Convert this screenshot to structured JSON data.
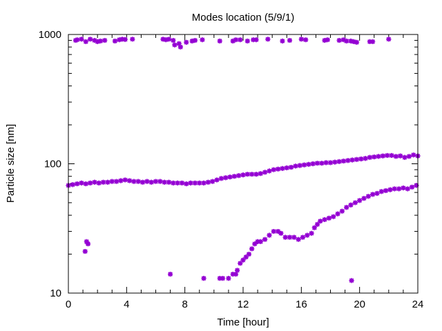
{
  "chart_data": {
    "type": "scatter",
    "title": "Modes location (5/9/1)",
    "xlabel": "Time [hour]",
    "ylabel": "Particle size [nm]",
    "xlim": [
      0,
      24
    ],
    "ylim": [
      10,
      1000
    ],
    "yscale": "log",
    "grid": false,
    "legend": "none",
    "marker_color": "#9400d3",
    "x_ticks": [
      0,
      4,
      8,
      12,
      16,
      20,
      24
    ],
    "x_tick_labels": [
      "0",
      "4",
      "8",
      "12",
      "16",
      "20",
      "24"
    ],
    "y_ticks": [
      10,
      100,
      1000
    ],
    "y_tick_labels": [
      "10",
      "100",
      "1000"
    ],
    "series": [
      {
        "values": [
          [
            0.5,
            900
          ],
          [
            0.6,
            910
          ],
          [
            0.9,
            920
          ],
          [
            1.2,
            880
          ],
          [
            1.5,
            920
          ],
          [
            1.8,
            900
          ],
          [
            2.0,
            880
          ],
          [
            2.2,
            890
          ],
          [
            2.5,
            900
          ],
          [
            3.2,
            890
          ],
          [
            3.5,
            910
          ],
          [
            3.7,
            920
          ],
          [
            3.9,
            915
          ],
          [
            4.4,
            920
          ],
          [
            6.5,
            920
          ],
          [
            6.7,
            910
          ],
          [
            6.9,
            920
          ],
          [
            7.2,
            900
          ],
          [
            7.3,
            830
          ],
          [
            7.6,
            850
          ],
          [
            7.7,
            800
          ],
          [
            8.1,
            870
          ],
          [
            8.5,
            890
          ],
          [
            8.7,
            900
          ],
          [
            9.2,
            910
          ],
          [
            10.4,
            890
          ],
          [
            11.3,
            890
          ],
          [
            11.5,
            910
          ],
          [
            11.8,
            910
          ],
          [
            12.3,
            890
          ],
          [
            12.7,
            910
          ],
          [
            12.9,
            910
          ],
          [
            13.7,
            920
          ],
          [
            14.7,
            890
          ],
          [
            15.2,
            900
          ],
          [
            16.0,
            920
          ],
          [
            16.3,
            910
          ],
          [
            17.6,
            900
          ],
          [
            17.8,
            910
          ],
          [
            18.6,
            900
          ],
          [
            18.9,
            910
          ],
          [
            19.1,
            890
          ],
          [
            19.4,
            890
          ],
          [
            19.6,
            880
          ],
          [
            19.8,
            870
          ],
          [
            20.7,
            880
          ],
          [
            20.9,
            880
          ],
          [
            22.0,
            920
          ]
        ]
      },
      {
        "values": [
          [
            0.0,
            68
          ],
          [
            0.3,
            69
          ],
          [
            0.6,
            70
          ],
          [
            0.9,
            71
          ],
          [
            1.2,
            70
          ],
          [
            1.5,
            71
          ],
          [
            1.8,
            72
          ],
          [
            2.1,
            71
          ],
          [
            2.4,
            72
          ],
          [
            2.7,
            72
          ],
          [
            3.0,
            73
          ],
          [
            3.3,
            73
          ],
          [
            3.6,
            74
          ],
          [
            3.9,
            75
          ],
          [
            4.2,
            74
          ],
          [
            4.5,
            73
          ],
          [
            4.8,
            73
          ],
          [
            5.1,
            72
          ],
          [
            5.4,
            73
          ],
          [
            5.7,
            72
          ],
          [
            6.0,
            73
          ],
          [
            6.3,
            73
          ],
          [
            6.6,
            72
          ],
          [
            6.9,
            72
          ],
          [
            7.2,
            71
          ],
          [
            7.5,
            71
          ],
          [
            7.8,
            71
          ],
          [
            8.1,
            70
          ],
          [
            8.4,
            71
          ],
          [
            8.7,
            71
          ],
          [
            9.0,
            71
          ],
          [
            9.3,
            71
          ],
          [
            9.6,
            72
          ],
          [
            9.9,
            73
          ],
          [
            10.2,
            75
          ],
          [
            10.5,
            77
          ],
          [
            10.8,
            78
          ],
          [
            11.1,
            79
          ],
          [
            11.4,
            80
          ],
          [
            11.7,
            81
          ],
          [
            12.0,
            82
          ],
          [
            12.3,
            83
          ],
          [
            12.6,
            83
          ],
          [
            12.9,
            83
          ],
          [
            13.2,
            84
          ],
          [
            13.5,
            86
          ],
          [
            13.8,
            88
          ],
          [
            14.1,
            90
          ],
          [
            14.4,
            91
          ],
          [
            14.7,
            92
          ],
          [
            15.0,
            93
          ],
          [
            15.3,
            94
          ],
          [
            15.6,
            96
          ],
          [
            15.9,
            97
          ],
          [
            16.2,
            98
          ],
          [
            16.5,
            99
          ],
          [
            16.8,
            100
          ],
          [
            17.1,
            101
          ],
          [
            17.4,
            101
          ],
          [
            17.7,
            102
          ],
          [
            18.0,
            102
          ],
          [
            18.3,
            103
          ],
          [
            18.6,
            104
          ],
          [
            18.9,
            105
          ],
          [
            19.2,
            106
          ],
          [
            19.5,
            107
          ],
          [
            19.8,
            108
          ],
          [
            20.1,
            109
          ],
          [
            20.4,
            110
          ],
          [
            20.7,
            112
          ],
          [
            21.0,
            113
          ],
          [
            21.3,
            114
          ],
          [
            21.6,
            115
          ],
          [
            21.9,
            116
          ],
          [
            22.2,
            116
          ],
          [
            22.5,
            114
          ],
          [
            22.8,
            115
          ],
          [
            23.1,
            112
          ],
          [
            23.4,
            114
          ],
          [
            23.7,
            117
          ],
          [
            24.0,
            115
          ]
        ]
      },
      {
        "values": [
          [
            1.15,
            21
          ],
          [
            1.25,
            25
          ],
          [
            1.35,
            24
          ],
          [
            7.0,
            14
          ],
          [
            9.3,
            13
          ],
          [
            10.4,
            13
          ],
          [
            10.6,
            13
          ],
          [
            11.0,
            13
          ],
          [
            11.3,
            14
          ],
          [
            11.5,
            14
          ],
          [
            11.6,
            15
          ],
          [
            11.8,
            17
          ],
          [
            12.0,
            18
          ],
          [
            12.2,
            19
          ],
          [
            12.4,
            20
          ],
          [
            12.6,
            22
          ],
          [
            12.8,
            24
          ],
          [
            13.0,
            25
          ],
          [
            13.2,
            25
          ],
          [
            13.5,
            26
          ],
          [
            13.8,
            28
          ],
          [
            14.1,
            30
          ],
          [
            14.4,
            30
          ],
          [
            14.6,
            29
          ],
          [
            14.9,
            27
          ],
          [
            15.2,
            27
          ],
          [
            15.5,
            27
          ],
          [
            15.8,
            26
          ],
          [
            16.1,
            27
          ],
          [
            16.4,
            28
          ],
          [
            16.7,
            29
          ],
          [
            16.9,
            32
          ],
          [
            17.1,
            34
          ],
          [
            17.3,
            36
          ],
          [
            17.6,
            37
          ],
          [
            17.9,
            38
          ],
          [
            18.2,
            39
          ],
          [
            18.5,
            41
          ],
          [
            18.8,
            43
          ],
          [
            19.1,
            46
          ],
          [
            19.4,
            48
          ],
          [
            19.7,
            50
          ],
          [
            20.0,
            52
          ],
          [
            20.3,
            54
          ],
          [
            20.6,
            56
          ],
          [
            20.9,
            58
          ],
          [
            21.2,
            59
          ],
          [
            21.5,
            61
          ],
          [
            21.8,
            62
          ],
          [
            22.1,
            63
          ],
          [
            22.4,
            64
          ],
          [
            22.7,
            64
          ],
          [
            23.0,
            65
          ],
          [
            23.3,
            64
          ],
          [
            23.6,
            66
          ],
          [
            23.9,
            68
          ],
          [
            19.45,
            12.5
          ]
        ]
      }
    ]
  }
}
